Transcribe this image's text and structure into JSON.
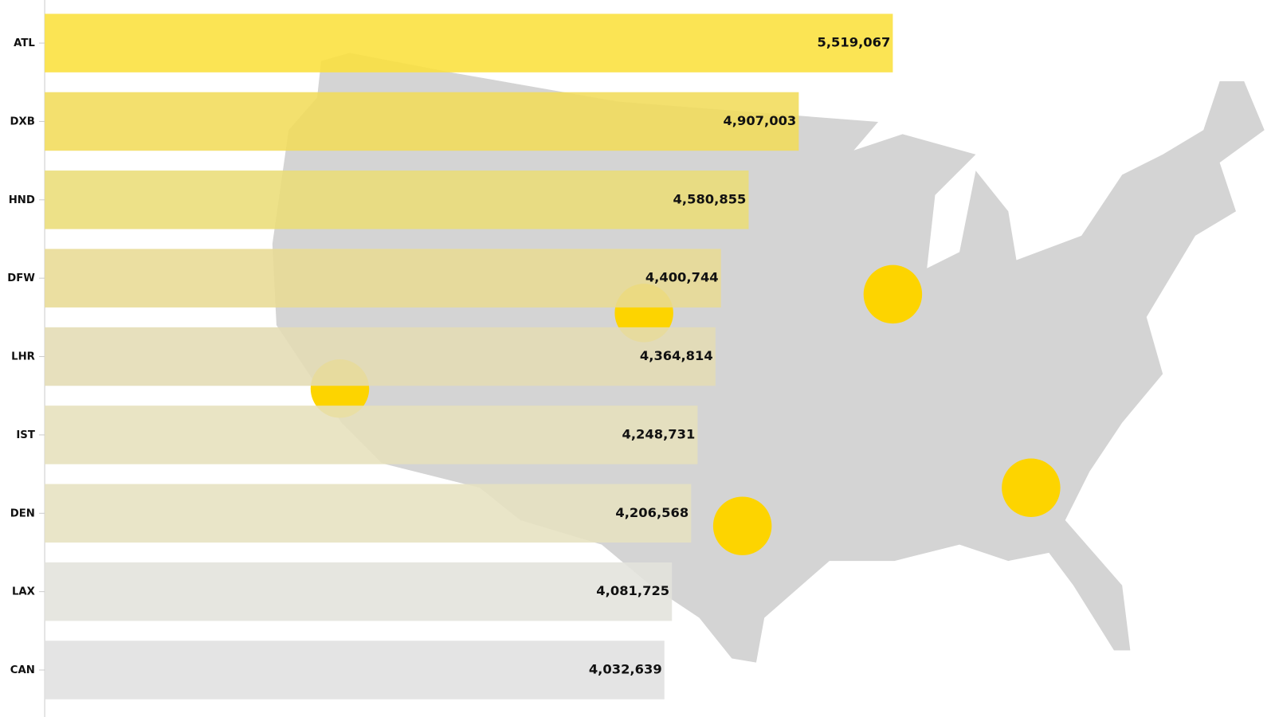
{
  "chart_data": {
    "type": "bar",
    "orientation": "horizontal",
    "categories": [
      "ATL",
      "DXB",
      "HND",
      "DFW",
      "LHR",
      "IST",
      "DEN",
      "LAX",
      "CAN"
    ],
    "values": [
      5519067,
      4907003,
      4580855,
      4400744,
      4364814,
      4248731,
      4206568,
      4081725,
      4032639
    ],
    "value_labels": [
      "5,519,067",
      "4,907,003",
      "4,580,855",
      "4,400,744",
      "4,364,814",
      "4,248,731",
      "4,206,568",
      "4,081,725",
      "4,032,639"
    ],
    "colors": [
      "#fbe03c",
      "#f1dc5a",
      "#ebdd78",
      "#e8db94",
      "#e4dcb4",
      "#e6e0bc",
      "#e6e1c0",
      "#e2e2dc",
      "#e0e0e0"
    ]
  }
}
